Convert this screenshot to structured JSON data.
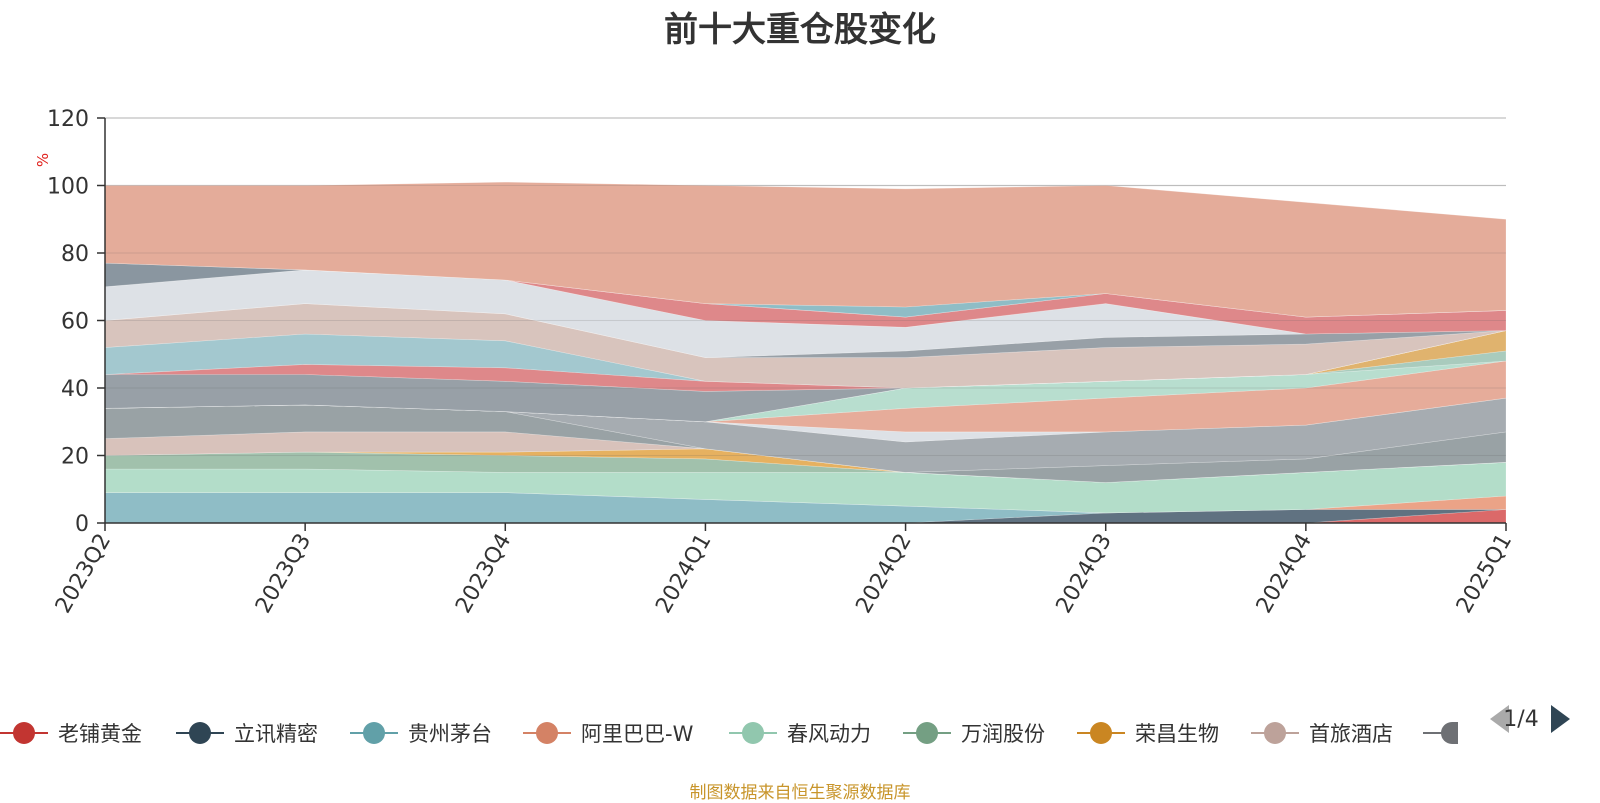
{
  "chart_data": {
    "type": "area",
    "stacked": true,
    "title": "前十大重仓股变化",
    "unit": "%",
    "x": [
      "2023Q2",
      "2023Q3",
      "2023Q4",
      "2024Q1",
      "2024Q2",
      "2024Q3",
      "2024Q4",
      "2025Q1"
    ],
    "ylim": [
      0,
      120
    ],
    "yticks": [
      0,
      20,
      40,
      60,
      80,
      100,
      120
    ],
    "grid": true,
    "legend_position": "bottom",
    "series": [
      {
        "name": "老铺黄金",
        "color": "#d65454",
        "values": [
          0,
          0,
          0,
          0,
          0,
          0,
          0,
          4
        ]
      },
      {
        "name": "立讯精密",
        "color": "#4a5e70",
        "values": [
          0,
          0,
          0,
          0,
          0,
          3,
          4,
          0
        ]
      },
      {
        "name": "贵州茅台",
        "color": "#80b4be",
        "values": [
          9,
          9,
          9,
          7,
          5,
          0,
          0,
          0
        ]
      },
      {
        "name": "阿里巴巴-W",
        "color": "#e89676",
        "values": [
          0,
          0,
          0,
          0,
          0,
          0,
          0,
          4
        ]
      },
      {
        "name": "春风动力",
        "color": "#a8d8c2",
        "values": [
          7,
          7,
          6,
          8,
          10,
          9,
          11,
          10
        ]
      },
      {
        "name": "万润股份",
        "color": "#94b8a0",
        "values": [
          4,
          5,
          5,
          4,
          0,
          0,
          0,
          0
        ]
      },
      {
        "name": "荣昌生物",
        "color": "#e3a64a",
        "values": [
          0,
          0,
          1,
          3,
          0,
          0,
          0,
          0
        ]
      },
      {
        "name": "首旅酒店",
        "color": "#d3bab2",
        "values": [
          5,
          6,
          6,
          0,
          0,
          0,
          0,
          0
        ]
      },
      {
        "name": "",
        "color": "#8b9599",
        "values": [
          9,
          8,
          6,
          0,
          0,
          5,
          4,
          9
        ]
      },
      {
        "name": "",
        "color": "#9aa0a6",
        "values": [
          0,
          0,
          0,
          8,
          9,
          10,
          10,
          10
        ]
      },
      {
        "name": "",
        "color": "#d8dde3",
        "values": [
          0,
          0,
          0,
          0,
          3,
          0,
          0,
          0
        ]
      },
      {
        "name": "",
        "color": "#e3a08c",
        "values": [
          0,
          0,
          0,
          0,
          7,
          10,
          11,
          11
        ]
      },
      {
        "name": "",
        "color": "#aedac8",
        "values": [
          0,
          0,
          0,
          0,
          6,
          5,
          4,
          0
        ]
      },
      {
        "name": "",
        "color": "#9dc4b4",
        "values": [
          0,
          0,
          0,
          0,
          0,
          0,
          0,
          3
        ]
      },
      {
        "name": "",
        "color": "#dca85a",
        "values": [
          0,
          0,
          0,
          0,
          0,
          0,
          0,
          6
        ]
      },
      {
        "name": "",
        "color": "#8a939b",
        "values": [
          10,
          9,
          9,
          9,
          0,
          0,
          0,
          0
        ]
      },
      {
        "name": "",
        "color": "#d9787a",
        "values": [
          0,
          3,
          4,
          3,
          0,
          0,
          0,
          0
        ]
      },
      {
        "name": "",
        "color": "#96c0c8",
        "values": [
          8,
          9,
          8,
          0,
          0,
          0,
          0,
          0
        ]
      },
      {
        "name": "",
        "color": "#d3bcb4",
        "values": [
          8,
          9,
          8,
          7,
          9,
          10,
          9,
          0
        ]
      },
      {
        "name": "",
        "color": "#8a939b",
        "values": [
          0,
          0,
          0,
          0,
          2,
          3,
          3,
          0
        ]
      },
      {
        "name": "",
        "color": "#d8dde3",
        "values": [
          10,
          10,
          10,
          11,
          7,
          10,
          0,
          0
        ]
      },
      {
        "name": "",
        "color": "#d9787a",
        "values": [
          0,
          0,
          0,
          5,
          3,
          3,
          5,
          6
        ]
      },
      {
        "name": "",
        "color": "#7a8893",
        "values": [
          7,
          0,
          0,
          0,
          0,
          0,
          0,
          0
        ]
      },
      {
        "name": "",
        "color": "#80b4be",
        "values": [
          0,
          0,
          0,
          0,
          3,
          0,
          0,
          0
        ]
      },
      {
        "name": "",
        "color": "#e0a08c",
        "values": [
          23,
          25,
          29,
          35,
          35,
          32,
          34,
          27
        ]
      }
    ]
  },
  "legend": {
    "items": [
      {
        "label": "老铺黄金",
        "color": "#c23531"
      },
      {
        "label": "立讯精密",
        "color": "#2f4554"
      },
      {
        "label": "贵州茅台",
        "color": "#61a0a8"
      },
      {
        "label": "阿里巴巴-W",
        "color": "#d48265"
      },
      {
        "label": "春风动力",
        "color": "#91c7ae"
      },
      {
        "label": "万润股份",
        "color": "#749f83"
      },
      {
        "label": "荣昌生物",
        "color": "#ca8622"
      },
      {
        "label": "首旅酒店",
        "color": "#bda29a"
      }
    ],
    "partial_color": "#6e7074",
    "page": "1/4"
  },
  "source_note": "制图数据来自恒生聚源数据库"
}
